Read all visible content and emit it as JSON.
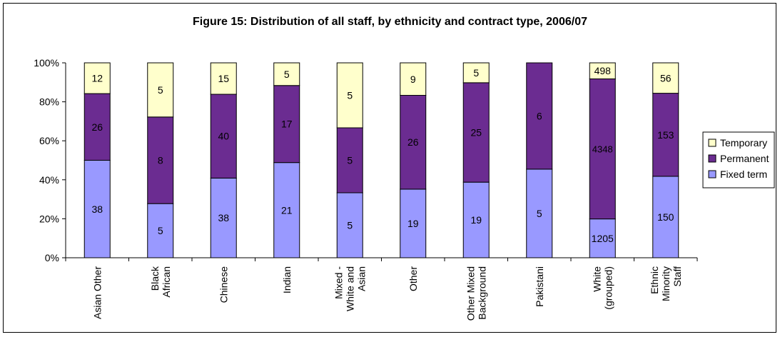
{
  "chart_data": {
    "type": "bar",
    "stacked": "percent",
    "title": "Figure 15: Distribution of all staff, by ethnicity and contract type, 2006/07",
    "xlabel": "",
    "ylabel": "",
    "ylim": [
      0,
      100
    ],
    "yticks": [
      "0%",
      "20%",
      "40%",
      "60%",
      "80%",
      "100%"
    ],
    "grid": false,
    "legend_position": "right",
    "categories": [
      [
        "Asian Other"
      ],
      [
        "Black",
        "African"
      ],
      [
        "Chinese"
      ],
      [
        "Indian"
      ],
      [
        "Mixed -",
        "White and",
        "Asian"
      ],
      [
        "Other"
      ],
      [
        "Other Mixed",
        "Background"
      ],
      [
        "Pakistani"
      ],
      [
        "White",
        "(grouped)"
      ],
      [
        "Ethnic",
        "Minority",
        "Staff"
      ]
    ],
    "series": [
      {
        "name": "Fixed term",
        "color": "#9999ff",
        "values": [
          38,
          5,
          38,
          21,
          5,
          19,
          19,
          5,
          1205,
          150
        ]
      },
      {
        "name": "Permanent",
        "color": "#6b2c91",
        "values": [
          26,
          8,
          40,
          17,
          5,
          26,
          25,
          6,
          4348,
          153
        ]
      },
      {
        "name": "Temporary",
        "color": "#ffffcc",
        "values": [
          12,
          5,
          15,
          5,
          5,
          9,
          5,
          0,
          498,
          56
        ]
      }
    ],
    "legend": [
      "Temporary",
      "Permanent",
      "Fixed term"
    ]
  }
}
